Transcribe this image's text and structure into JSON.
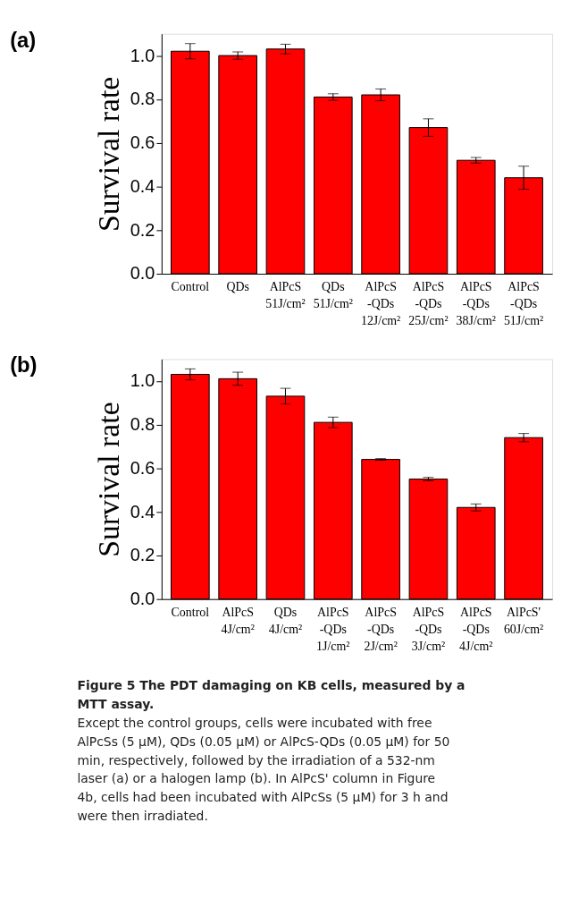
{
  "chart_data": [
    {
      "type": "bar",
      "title": "(a)",
      "ylabel": "Survival rate",
      "categories": [
        "Control",
        "QDs",
        "AlPcS\n51J/cm²",
        "QDs\n51J/cm²",
        "AlPcS\n-QDs\n12J/cm²",
        "AlPcS\n-QDs\n25J/cm²",
        "AlPcS\n-QDs\n38J/cm²",
        "AlPcS\n-QDs\n51J/cm²"
      ],
      "values": [
        1.02,
        1.0,
        1.03,
        0.81,
        0.82,
        0.67,
        0.52,
        0.44
      ],
      "errors": [
        0.035,
        0.017,
        0.022,
        0.015,
        0.027,
        0.04,
        0.013,
        0.053
      ],
      "color": "#ff0000",
      "ylim": [
        0,
        1.1
      ],
      "yticks": [
        {
          "value": 0,
          "label": "0.0"
        },
        0.2,
        0.4,
        0.6,
        0.8,
        {
          "value": 1,
          "label": "1.0"
        }
      ],
      "grid": false
    },
    {
      "type": "bar",
      "title": "(b)",
      "ylabel": "Survival rate",
      "categories": [
        "Control",
        "AlPcS\n4J/cm²",
        "QDs\n4J/cm²",
        "AlPcS\n-QDs\n1J/cm²",
        "AlPcS\n-QDs\n2J/cm²",
        "AlPcS\n-QDs\n3J/cm²",
        "AlPcS\n-QDs\n4J/cm²",
        "AlPcS'\n60J/cm²"
      ],
      "values": [
        1.03,
        1.01,
        0.93,
        0.81,
        0.64,
        0.55,
        0.42,
        0.74
      ],
      "errors": [
        0.025,
        0.03,
        0.036,
        0.024,
        0.004,
        0.008,
        0.016,
        0.019
      ],
      "color": "#ff0000",
      "ylim": [
        0,
        1.1
      ],
      "yticks": [
        {
          "value": 0,
          "label": "0.0"
        },
        0.2,
        0.4,
        0.6,
        0.8,
        {
          "value": 1,
          "label": "1.0"
        }
      ],
      "grid": false,
      "annotations": [
        "Figure 5 The PDT damaging on KB cells, measured by a MTT assay.",
        "Except the control groups, cells were incubated with free AlPcSs (5 μM), QDs (0.05 μM) or AlPcS-QDs (0.05 μM) for 50 min, respectively, followed by the irradiation of a 532-nm laser (a) or a halogen lamp (b). In AlPcS' column in Figure 4b, cells had been incubated with AlPcSs (5 μM) for 3 h and were then irradiated."
      ]
    }
  ]
}
